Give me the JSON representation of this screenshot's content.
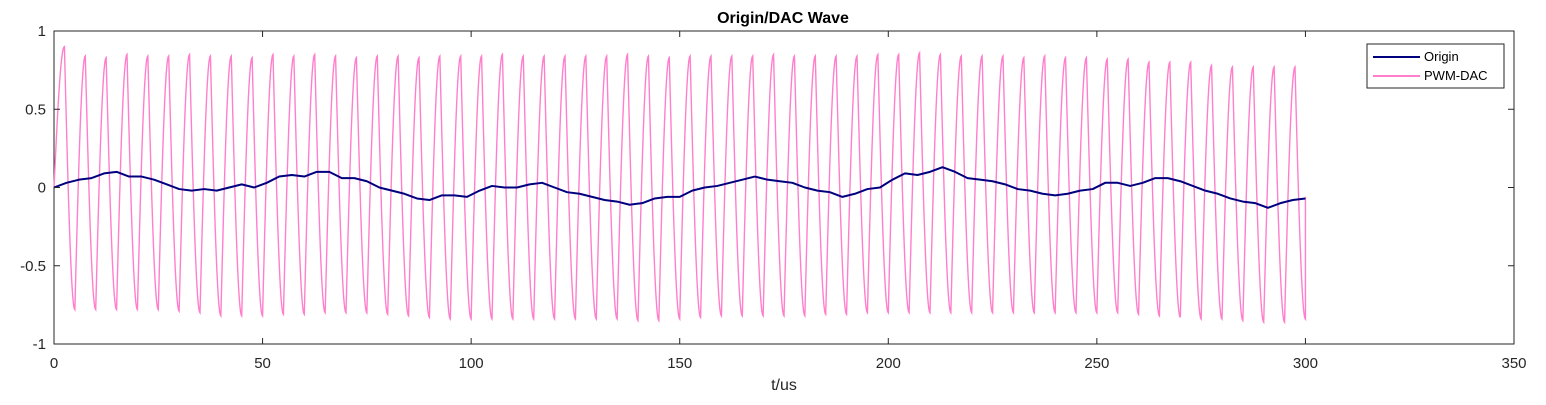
{
  "chart_data": {
    "type": "line",
    "title": "Origin/DAC Wave",
    "xlabel": "t/us",
    "ylabel": "",
    "xlim": [
      0,
      350
    ],
    "ylim": [
      -1,
      1
    ],
    "xticks": [
      0,
      50,
      100,
      150,
      200,
      250,
      300,
      350
    ],
    "yticks": [
      1,
      0.5,
      0,
      -0.5,
      -1
    ],
    "grid": false,
    "legend_position": "top-right",
    "series": [
      {
        "name": "Origin",
        "color": "#00007f",
        "x": [
          0,
          3,
          6,
          9,
          12,
          15,
          18,
          21,
          24,
          27,
          30,
          33,
          36,
          39,
          42,
          45,
          48,
          51,
          54,
          57,
          60,
          63,
          66,
          69,
          72,
          75,
          78,
          81,
          84,
          87,
          90,
          93,
          96,
          99,
          102,
          105,
          108,
          111,
          114,
          117,
          120,
          123,
          126,
          129,
          132,
          135,
          138,
          141,
          144,
          147,
          150,
          153,
          156,
          159,
          162,
          165,
          168,
          171,
          174,
          177,
          180,
          183,
          186,
          189,
          192,
          195,
          198,
          201,
          204,
          207,
          210,
          213,
          216,
          219,
          222,
          225,
          228,
          231,
          234,
          237,
          240,
          243,
          246,
          249,
          252,
          255,
          258,
          261,
          264,
          267,
          270,
          273,
          276,
          279,
          282,
          285,
          288,
          291,
          294,
          297,
          300
        ],
        "y": [
          0,
          0.03,
          0.05,
          0.06,
          0.09,
          0.1,
          0.07,
          0.07,
          0.05,
          0.02,
          -0.01,
          -0.02,
          -0.01,
          -0.02,
          0.0,
          0.02,
          0.0,
          0.03,
          0.07,
          0.08,
          0.07,
          0.1,
          0.1,
          0.06,
          0.06,
          0.04,
          0.0,
          -0.02,
          -0.04,
          -0.07,
          -0.08,
          -0.05,
          -0.05,
          -0.06,
          -0.02,
          0.01,
          0.0,
          0.0,
          0.02,
          0.03,
          0.0,
          -0.03,
          -0.04,
          -0.06,
          -0.08,
          -0.09,
          -0.11,
          -0.1,
          -0.07,
          -0.06,
          -0.06,
          -0.02,
          0.0,
          0.01,
          0.03,
          0.05,
          0.07,
          0.05,
          0.04,
          0.03,
          0.0,
          -0.02,
          -0.03,
          -0.06,
          -0.04,
          -0.01,
          0.0,
          0.05,
          0.09,
          0.08,
          0.1,
          0.13,
          0.1,
          0.06,
          0.05,
          0.04,
          0.02,
          -0.01,
          -0.02,
          -0.04,
          -0.05,
          -0.04,
          -0.02,
          -0.01,
          0.03,
          0.03,
          0.01,
          0.03,
          0.06,
          0.06,
          0.04,
          0.01,
          -0.02,
          -0.04,
          -0.07,
          -0.09,
          -0.1,
          -0.13,
          -0.1,
          -0.08,
          -0.07
        ]
      },
      {
        "name": "PWM-DAC",
        "color": "#ff7fcc",
        "period": 5,
        "peaks": [
          0.9,
          0.84,
          0.83,
          0.85,
          0.84,
          0.84,
          0.85,
          0.84,
          0.84,
          0.83,
          0.85,
          0.84,
          0.85,
          0.84,
          0.83,
          0.84,
          0.84,
          0.83,
          0.84,
          0.84,
          0.84,
          0.85,
          0.84,
          0.84,
          0.84,
          0.84,
          0.84,
          0.85,
          0.84,
          0.83,
          0.84,
          0.84,
          0.84,
          0.84,
          0.85,
          0.84,
          0.84,
          0.84,
          0.84,
          0.85,
          0.85,
          0.86,
          0.85,
          0.84,
          0.84,
          0.84,
          0.83,
          0.84,
          0.83,
          0.83,
          0.82,
          0.82,
          0.8,
          0.8,
          0.8,
          0.78,
          0.77,
          0.77,
          0.77,
          0.77
        ],
        "troughs": [
          -0.78,
          -0.78,
          -0.78,
          -0.78,
          -0.78,
          -0.79,
          -0.8,
          -0.82,
          -0.82,
          -0.82,
          -0.81,
          -0.81,
          -0.8,
          -0.8,
          -0.8,
          -0.81,
          -0.82,
          -0.83,
          -0.84,
          -0.84,
          -0.84,
          -0.84,
          -0.84,
          -0.84,
          -0.84,
          -0.84,
          -0.84,
          -0.85,
          -0.85,
          -0.84,
          -0.83,
          -0.82,
          -0.82,
          -0.82,
          -0.82,
          -0.82,
          -0.81,
          -0.81,
          -0.8,
          -0.8,
          -0.8,
          -0.8,
          -0.8,
          -0.8,
          -0.8,
          -0.8,
          -0.8,
          -0.8,
          -0.8,
          -0.8,
          -0.8,
          -0.81,
          -0.82,
          -0.83,
          -0.84,
          -0.84,
          -0.85,
          -0.86,
          -0.86,
          -0.84
        ],
        "end_value": -0.06
      }
    ]
  }
}
